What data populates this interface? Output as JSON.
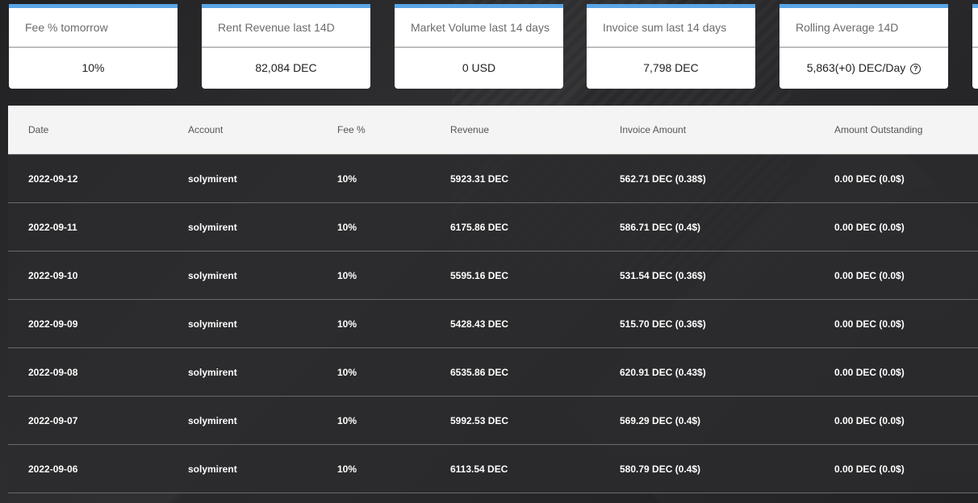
{
  "cards": [
    {
      "title": "Fee % tomorrow",
      "value": "10%"
    },
    {
      "title": "Rent Revenue last 14D",
      "value": "82,084 DEC"
    },
    {
      "title": "Market Volume last 14 days",
      "value": "0 USD"
    },
    {
      "title": "Invoice sum last 14 days",
      "value": "7,798 DEC"
    },
    {
      "title": "Rolling Average 14D",
      "value": "5,863(+0) DEC/Day",
      "help_icon": "question-circle-icon",
      "help_glyph": "?"
    }
  ],
  "accent_color": "#5aa6e6",
  "table": {
    "headers": {
      "date": "Date",
      "account": "Account",
      "fee": "Fee %",
      "revenue": "Revenue",
      "invoice": "Invoice Amount",
      "outstanding": "Amount Outstanding"
    },
    "rows": [
      {
        "date": "2022-09-12",
        "account": "solymirent",
        "fee": "10%",
        "revenue": "5923.31 DEC",
        "invoice": "562.71 DEC (0.38$)",
        "outstanding": "0.00 DEC (0.0$)"
      },
      {
        "date": "2022-09-11",
        "account": "solymirent",
        "fee": "10%",
        "revenue": "6175.86 DEC",
        "invoice": "586.71 DEC (0.4$)",
        "outstanding": "0.00 DEC (0.0$)"
      },
      {
        "date": "2022-09-10",
        "account": "solymirent",
        "fee": "10%",
        "revenue": "5595.16 DEC",
        "invoice": "531.54 DEC (0.36$)",
        "outstanding": "0.00 DEC (0.0$)"
      },
      {
        "date": "2022-09-09",
        "account": "solymirent",
        "fee": "10%",
        "revenue": "5428.43 DEC",
        "invoice": "515.70 DEC (0.36$)",
        "outstanding": "0.00 DEC (0.0$)"
      },
      {
        "date": "2022-09-08",
        "account": "solymirent",
        "fee": "10%",
        "revenue": "6535.86 DEC",
        "invoice": "620.91 DEC (0.43$)",
        "outstanding": "0.00 DEC (0.0$)"
      },
      {
        "date": "2022-09-07",
        "account": "solymirent",
        "fee": "10%",
        "revenue": "5992.53 DEC",
        "invoice": "569.29 DEC (0.4$)",
        "outstanding": "0.00 DEC (0.0$)"
      },
      {
        "date": "2022-09-06",
        "account": "solymirent",
        "fee": "10%",
        "revenue": "6113.54 DEC",
        "invoice": "580.79 DEC (0.4$)",
        "outstanding": "0.00 DEC (0.0$)"
      }
    ]
  }
}
